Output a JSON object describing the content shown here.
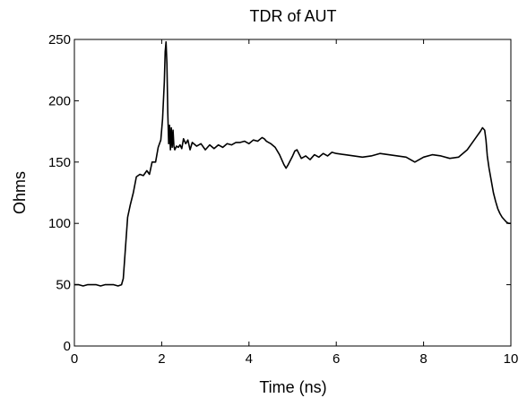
{
  "chart_data": {
    "type": "line",
    "title": "TDR of AUT",
    "xlabel": "Time (ns)",
    "ylabel": "Ohms",
    "xlim": [
      0,
      10
    ],
    "ylim": [
      0,
      250
    ],
    "xticks": [
      0,
      2,
      4,
      6,
      8,
      10
    ],
    "yticks": [
      0,
      50,
      100,
      150,
      200,
      250
    ],
    "xtick_labels": [
      "0",
      "2",
      "4",
      "6",
      "8",
      "10"
    ],
    "ytick_labels": [
      "0",
      "50",
      "100",
      "150",
      "200",
      "250"
    ],
    "grid": false,
    "legend": "none",
    "line_color": "#000000",
    "series": [
      {
        "x": [
          0,
          0.1,
          0.2,
          0.3,
          0.4,
          0.5,
          0.6,
          0.7,
          0.8,
          0.9,
          1.0,
          1.08,
          1.12,
          1.16,
          1.22,
          1.28,
          1.35,
          1.42,
          1.5,
          1.58,
          1.66,
          1.72,
          1.78,
          1.86,
          1.92,
          1.98,
          2.02,
          2.06,
          2.08,
          2.1,
          2.12,
          2.14,
          2.16,
          2.18,
          2.2,
          2.22,
          2.24,
          2.26,
          2.28,
          2.3,
          2.34,
          2.38,
          2.42,
          2.46,
          2.5,
          2.55,
          2.6,
          2.65,
          2.7,
          2.8,
          2.9,
          3.0,
          3.1,
          3.2,
          3.3,
          3.4,
          3.5,
          3.6,
          3.7,
          3.8,
          3.9,
          4.0,
          4.1,
          4.2,
          4.3,
          4.35,
          4.4,
          4.5,
          4.6,
          4.7,
          4.8,
          4.85,
          4.9,
          5.0,
          5.05,
          5.1,
          5.2,
          5.3,
          5.4,
          5.5,
          5.6,
          5.7,
          5.8,
          5.9,
          6.0,
          6.2,
          6.4,
          6.6,
          6.8,
          7.0,
          7.2,
          7.4,
          7.6,
          7.8,
          8.0,
          8.2,
          8.4,
          8.6,
          8.8,
          9.0,
          9.1,
          9.2,
          9.3,
          9.35,
          9.4,
          9.43,
          9.46,
          9.5,
          9.55,
          9.6,
          9.65,
          9.7,
          9.75,
          9.8,
          9.85,
          9.9,
          9.95,
          10.0
        ],
        "y": [
          50,
          50,
          49,
          50,
          50,
          50,
          49,
          50,
          50,
          50,
          49,
          50,
          55,
          75,
          105,
          115,
          125,
          138,
          140,
          139,
          143,
          140,
          150,
          150,
          162,
          168,
          185,
          215,
          240,
          248,
          230,
          190,
          165,
          180,
          160,
          178,
          162,
          176,
          163,
          160,
          163,
          162,
          164,
          161,
          169,
          165,
          168,
          160,
          166,
          163,
          165,
          160,
          164,
          161,
          164,
          162,
          165,
          164,
          166,
          166,
          167,
          165,
          168,
          167,
          170,
          169,
          167,
          165,
          162,
          156,
          148,
          145,
          148,
          155,
          159,
          160,
          153,
          155,
          152,
          156,
          154,
          157,
          155,
          158,
          157,
          156,
          155,
          154,
          155,
          157,
          156,
          155,
          154,
          150,
          154,
          156,
          155,
          153,
          154,
          160,
          165,
          170,
          175,
          178,
          176,
          168,
          155,
          145,
          135,
          125,
          118,
          112,
          108,
          105,
          103,
          101,
          100,
          100
        ]
      }
    ]
  }
}
